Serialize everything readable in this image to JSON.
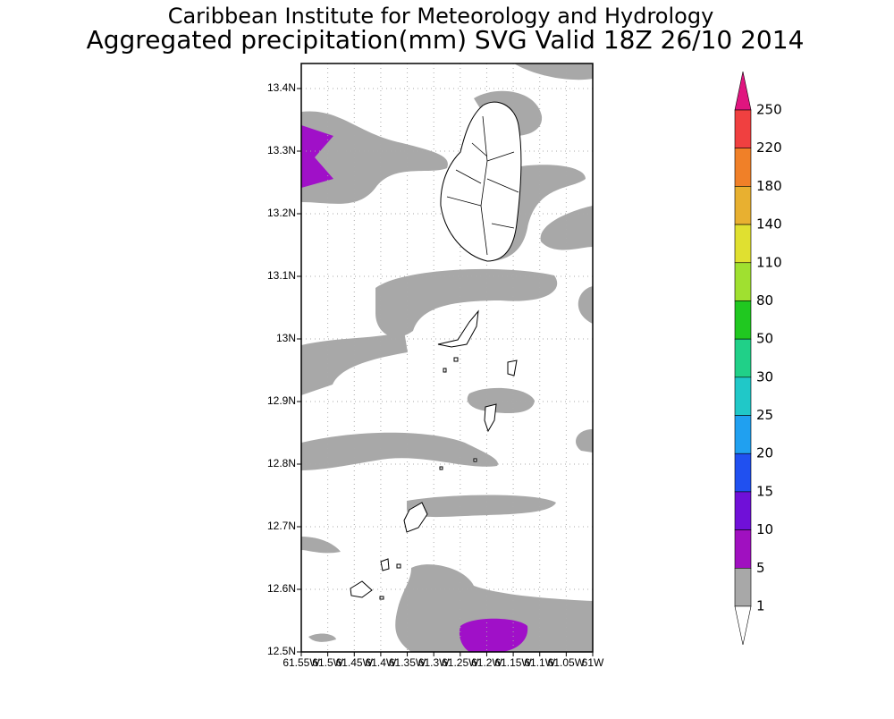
{
  "header": {
    "title": "Caribbean Institute for Meteorology and Hydrology",
    "subtitle": "Aggregated precipitation(mm) SVG Valid 18Z 26/10 2014"
  },
  "map": {
    "yticks": [
      "13.4N",
      "13.3N",
      "13.2N",
      "13.1N",
      "13N",
      "12.9N",
      "12.8N",
      "12.7N",
      "12.6N",
      "12.5N"
    ],
    "xticks": [
      "61.55W",
      "61.5W",
      "61.45W",
      "61.4W",
      "61.35W",
      "61.3W",
      "61.25W",
      "61.2W",
      "61.15W",
      "61.1W",
      "61.05W",
      "61W"
    ]
  },
  "colorbar": {
    "labels": [
      250,
      220,
      180,
      140,
      110,
      80,
      50,
      30,
      25,
      20,
      15,
      10,
      5,
      1
    ],
    "colors": [
      "#e0157f",
      "#f04040",
      "#f08028",
      "#e8b030",
      "#e0e030",
      "#a0e030",
      "#20c820",
      "#20d088",
      "#20c8c8",
      "#20a0f0",
      "#2050f0",
      "#7010d8",
      "#a010c0",
      "#a8a8a8",
      "#ffffff"
    ]
  }
}
